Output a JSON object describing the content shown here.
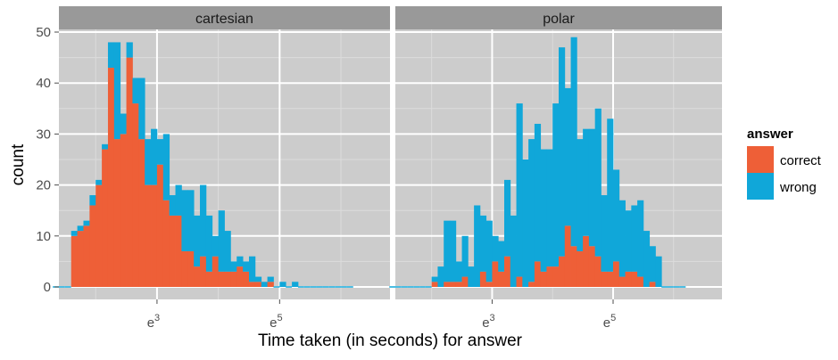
{
  "chart_data": {
    "type": "bar",
    "stacked": true,
    "xlabel": "Time taken (in seconds) for answer",
    "ylabel": "count",
    "x_scale": "log (natural)",
    "x_tick_labels": [
      {
        "base": "e",
        "exp": "3"
      },
      {
        "base": "e",
        "exp": "5"
      }
    ],
    "ylim": [
      0,
      50
    ],
    "y_ticks": [
      0,
      10,
      20,
      30,
      40,
      50
    ],
    "grid": true,
    "legend": {
      "title": "answer",
      "placement": "right",
      "entries": [
        {
          "label": "correct",
          "color": "#EE5F37"
        },
        {
          "label": "wrong",
          "color": "#10A7D9"
        }
      ]
    },
    "bins_ln_seconds": {
      "start": 1.3,
      "width": 0.1,
      "count": 49
    },
    "panels": [
      {
        "strip": "cartesian",
        "series": [
          {
            "name": "correct",
            "color": "#EE5F37",
            "values": [
              0,
              0,
              0,
              10,
              11,
              12,
              16,
              20,
              27,
              43,
              29,
              30,
              45,
              36,
              29,
              20,
              20,
              24,
              17,
              14,
              14,
              7,
              7,
              4,
              6,
              3,
              6,
              3,
              3,
              3,
              4,
              3,
              1,
              1,
              0,
              1,
              0,
              0,
              0,
              0,
              0,
              0,
              0,
              0,
              0,
              0,
              0,
              0,
              0
            ]
          },
          {
            "name": "wrong",
            "color": "#10A7D9",
            "values": [
              0,
              0,
              0,
              1,
              1,
              1,
              2,
              1,
              1,
              5,
              19,
              4,
              3,
              5,
              12,
              9,
              11,
              5,
              13,
              4,
              6,
              12,
              12,
              10,
              14,
              11,
              4,
              12,
              8,
              2,
              2,
              2,
              5,
              1,
              1,
              1,
              0,
              1,
              0,
              1,
              0,
              0,
              0,
              0,
              0,
              0,
              0,
              0,
              0
            ]
          }
        ]
      },
      {
        "strip": "polar",
        "series": [
          {
            "name": "correct",
            "color": "#EE5F37",
            "values": [
              0,
              0,
              0,
              0,
              0,
              0,
              0,
              1,
              0,
              1,
              1,
              1,
              2,
              0,
              0,
              3,
              1,
              5,
              3,
              6,
              0,
              2,
              0,
              1,
              5,
              3,
              4,
              4,
              6,
              12,
              8,
              7,
              10,
              8,
              6,
              3,
              3,
              5,
              2,
              3,
              3,
              2,
              0,
              1,
              0,
              0,
              0,
              0,
              0
            ]
          },
          {
            "name": "wrong",
            "color": "#10A7D9",
            "values": [
              0,
              0,
              0,
              0,
              0,
              0,
              0,
              1,
              4,
              12,
              12,
              4,
              8,
              4,
              16,
              11,
              12,
              5,
              6,
              15,
              14,
              34,
              25,
              28,
              27,
              24,
              23,
              32,
              41,
              27,
              41,
              22,
              21,
              23,
              29,
              15,
              30,
              18,
              15,
              12,
              13,
              15,
              11,
              7,
              6,
              0,
              0,
              0,
              0
            ]
          }
        ]
      }
    ]
  }
}
